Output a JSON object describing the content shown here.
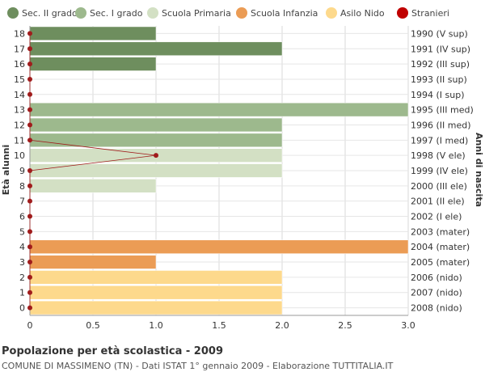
{
  "chart_data": {
    "type": "bar",
    "orientation": "horizontal",
    "title": "Popolazione per età scolastica - 2009",
    "subtitle": "COMUNE DI MASSIMENO (TN) - Dati ISTAT 1° gennaio 2009 - Elaborazione TUTTITALIA.IT",
    "ylabel": "Età alunni",
    "y2label": "Anni di nascita",
    "xlim": [
      0,
      3
    ],
    "xticks": [
      "0",
      "0.5",
      "1.0",
      "1.5",
      "2.0",
      "2.5",
      "3.0"
    ],
    "grid": true,
    "legend_position": "top",
    "legend": [
      {
        "name": "Sec. II grado",
        "color": "#6e8e5e",
        "shape": "circle"
      },
      {
        "name": "Sec. I grado",
        "color": "#9db98d",
        "shape": "circle"
      },
      {
        "name": "Scuola Primaria",
        "color": "#d3e0c4",
        "shape": "circle"
      },
      {
        "name": "Scuola Infanzia",
        "color": "#eb9c55",
        "shape": "circle"
      },
      {
        "name": "Asilo Nido",
        "color": "#fdd98c",
        "shape": "circle"
      },
      {
        "name": "Stranieri",
        "color": "#c00000",
        "shape": "circle"
      }
    ],
    "rows": [
      {
        "age": "18",
        "birth": "1990 (V sup)",
        "value": 1,
        "group": "Sec. II grado",
        "color": "#6e8e5e",
        "stranieri": 0
      },
      {
        "age": "17",
        "birth": "1991 (IV sup)",
        "value": 2,
        "group": "Sec. II grado",
        "color": "#6e8e5e",
        "stranieri": 0
      },
      {
        "age": "16",
        "birth": "1992 (III sup)",
        "value": 1,
        "group": "Sec. II grado",
        "color": "#6e8e5e",
        "stranieri": 0
      },
      {
        "age": "15",
        "birth": "1993 (II sup)",
        "value": 0,
        "group": "Sec. II grado",
        "color": "#6e8e5e",
        "stranieri": 0
      },
      {
        "age": "14",
        "birth": "1994 (I sup)",
        "value": 0,
        "group": "Sec. II grado",
        "color": "#6e8e5e",
        "stranieri": 0
      },
      {
        "age": "13",
        "birth": "1995 (III med)",
        "value": 3,
        "group": "Sec. I grado",
        "color": "#9db98d",
        "stranieri": 0
      },
      {
        "age": "12",
        "birth": "1996 (II med)",
        "value": 2,
        "group": "Sec. I grado",
        "color": "#9db98d",
        "stranieri": 0
      },
      {
        "age": "11",
        "birth": "1997 (I med)",
        "value": 2,
        "group": "Sec. I grado",
        "color": "#9db98d",
        "stranieri": 0
      },
      {
        "age": "10",
        "birth": "1998 (V ele)",
        "value": 2,
        "group": "Scuola Primaria",
        "color": "#d3e0c4",
        "stranieri": 1
      },
      {
        "age": "9",
        "birth": "1999 (IV ele)",
        "value": 2,
        "group": "Scuola Primaria",
        "color": "#d3e0c4",
        "stranieri": 0
      },
      {
        "age": "8",
        "birth": "2000 (III ele)",
        "value": 1,
        "group": "Scuola Primaria",
        "color": "#d3e0c4",
        "stranieri": 0
      },
      {
        "age": "7",
        "birth": "2001 (II ele)",
        "value": 0,
        "group": "Scuola Primaria",
        "color": "#d3e0c4",
        "stranieri": 0
      },
      {
        "age": "6",
        "birth": "2002 (I ele)",
        "value": 0,
        "group": "Scuola Primaria",
        "color": "#d3e0c4",
        "stranieri": 0
      },
      {
        "age": "5",
        "birth": "2003 (mater)",
        "value": 0,
        "group": "Scuola Infanzia",
        "color": "#eb9c55",
        "stranieri": 0
      },
      {
        "age": "4",
        "birth": "2004 (mater)",
        "value": 3,
        "group": "Scuola Infanzia",
        "color": "#eb9c55",
        "stranieri": 0
      },
      {
        "age": "3",
        "birth": "2005 (mater)",
        "value": 1,
        "group": "Scuola Infanzia",
        "color": "#eb9c55",
        "stranieri": 0
      },
      {
        "age": "2",
        "birth": "2006 (nido)",
        "value": 2,
        "group": "Asilo Nido",
        "color": "#fdd98c",
        "stranieri": 0
      },
      {
        "age": "1",
        "birth": "2007 (nido)",
        "value": 2,
        "group": "Asilo Nido",
        "color": "#fdd98c",
        "stranieri": 0
      },
      {
        "age": "0",
        "birth": "2008 (nido)",
        "value": 2,
        "group": "Asilo Nido",
        "color": "#fdd98c",
        "stranieri": 0
      }
    ],
    "stranieri_color": "#a01c1c"
  }
}
